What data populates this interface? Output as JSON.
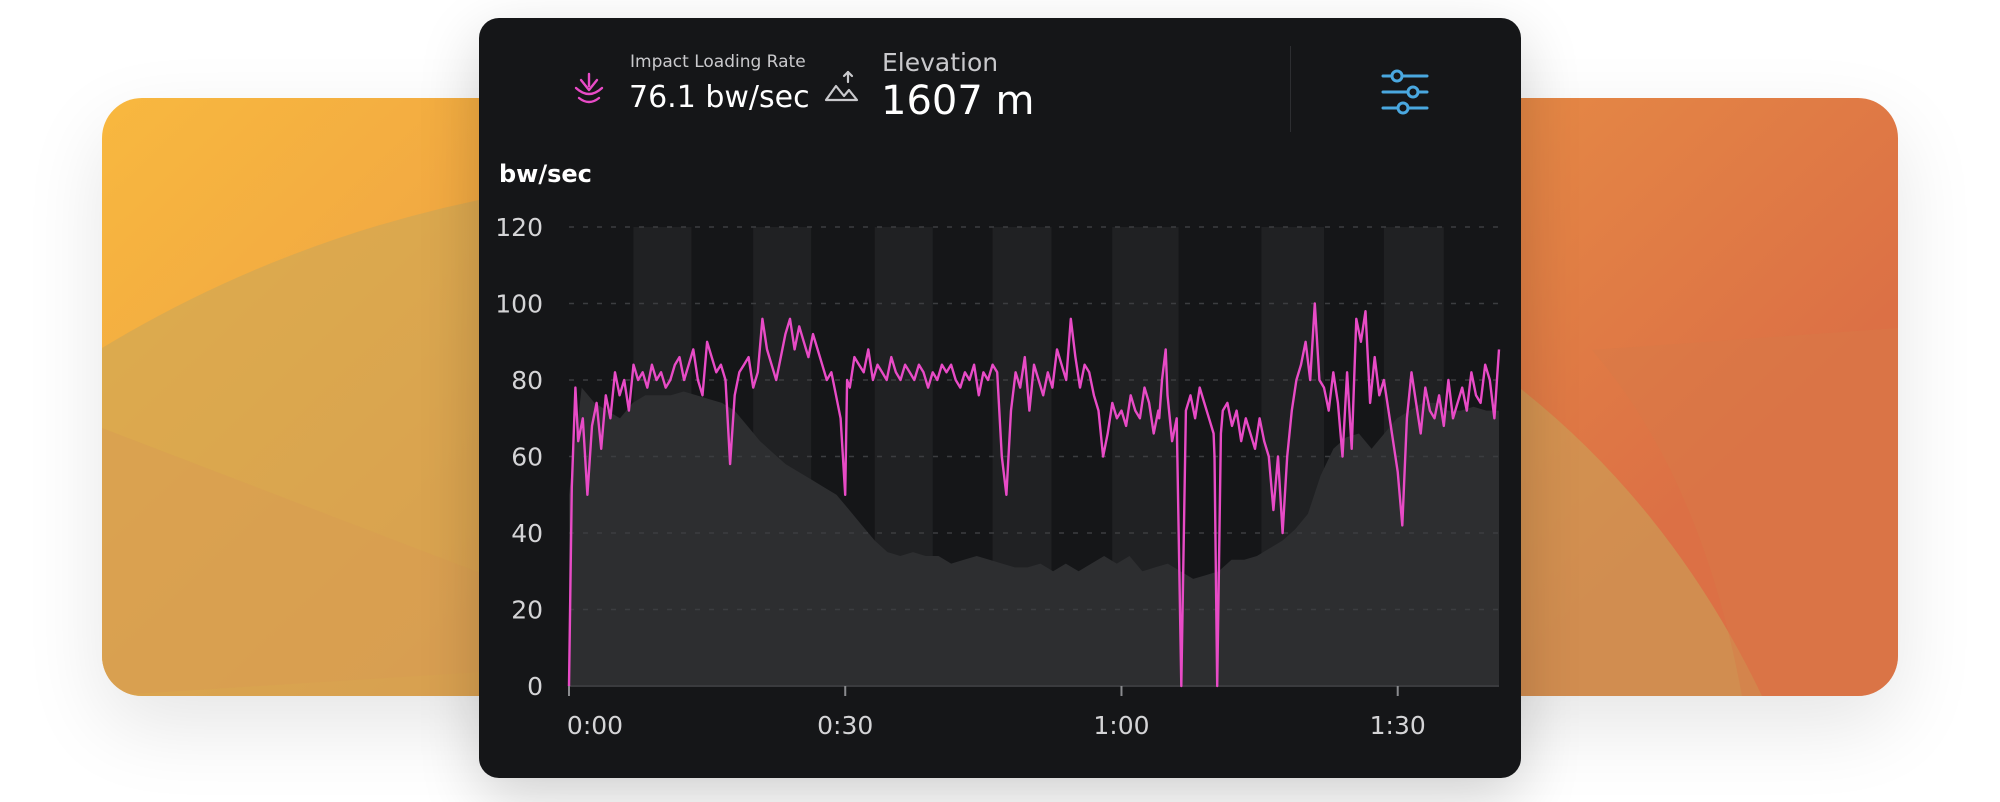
{
  "header": {
    "impact": {
      "icon": "impact-loading-icon",
      "label": "Impact Loading Rate",
      "value": "76.1 bw/sec"
    },
    "elevation": {
      "icon": "elevation-icon",
      "label": "Elevation",
      "value": "1607 m"
    },
    "settings_icon": "settings-sliders-icon"
  },
  "colors": {
    "series": "#e84bc6",
    "elevation_fill": "#2e2f31",
    "panel_bg": "#151618",
    "accent_settings": "#4aa8e0",
    "bg_warm_1": "#f8b73f",
    "bg_warm_2": "#de7440"
  },
  "chart_data": {
    "type": "line",
    "ylabel": "bw/sec",
    "ylim": [
      0,
      120
    ],
    "yticks": [
      "0",
      "20",
      "40",
      "60",
      "80",
      "100",
      "120"
    ],
    "xlim_minutes": [
      0,
      101
    ],
    "xticks": [
      {
        "t": 0,
        "label": "0:00"
      },
      {
        "t": 30,
        "label": "0:30"
      },
      {
        "t": 60,
        "label": "1:00"
      },
      {
        "t": 90,
        "label": "1:30"
      }
    ],
    "grid": "dashed-horizontal",
    "highlight_bands_minutes": [
      [
        7,
        13.3
      ],
      [
        20,
        26.3
      ],
      [
        33.2,
        39.5
      ],
      [
        46,
        52.4
      ],
      [
        59,
        66.2
      ],
      [
        75.2,
        82
      ],
      [
        88.5,
        95
      ]
    ],
    "series": [
      {
        "values_t_minutes": [
          0,
          0.3,
          0.7,
          1,
          1.5,
          2,
          2.5,
          3,
          3.5,
          4,
          4.5,
          5,
          5.5,
          6,
          6.5,
          7,
          7.5,
          8,
          8.5,
          9,
          9.5,
          10,
          10.5,
          11,
          11.5,
          12,
          12.5,
          13,
          13.5,
          14,
          14.5,
          15,
          15.5,
          16,
          16.5,
          17,
          17.5,
          18,
          18.5,
          19,
          19.5,
          20,
          20.5,
          21,
          21.5,
          22,
          22.5,
          23,
          23.5,
          24,
          24.5,
          25,
          25.5,
          26,
          26.5,
          27,
          27.5,
          28,
          28.5,
          29,
          29.5,
          30,
          30.2,
          30.5,
          31,
          31.5,
          32,
          32.5,
          33,
          33.5,
          34,
          34.5,
          35,
          35.5,
          36,
          36.5,
          37,
          37.5,
          38,
          38.5,
          39,
          39.5,
          40,
          40.5,
          41,
          41.5,
          42,
          42.5,
          43,
          43.5,
          44,
          44.5,
          45,
          45.5,
          46,
          46.5,
          47,
          47.5,
          48,
          48.5,
          49,
          49.5,
          50,
          50.5,
          51,
          51.5,
          52,
          52.5,
          53,
          53.5,
          54,
          54.5,
          55,
          55.5,
          56,
          56.5,
          57,
          57.5,
          58,
          58.5,
          59,
          59.5,
          60,
          60.5,
          61,
          61.5,
          62,
          62.5,
          63,
          63.5,
          64,
          64.1,
          64.4,
          64.8,
          65,
          65.5,
          66,
          66.5,
          67,
          67.5,
          68,
          68.5,
          69,
          69.5,
          70,
          70.1,
          70.4,
          70.8,
          71,
          71.5,
          72,
          72.5,
          73,
          73.5,
          74,
          74.5,
          75,
          75.5,
          76,
          76.5,
          77,
          77.5,
          78,
          78.5,
          79,
          79.5,
          80,
          80.5,
          81,
          81.5,
          82,
          82.5,
          83,
          83.5,
          84,
          84.5,
          85,
          85.5,
          86,
          86.5,
          87,
          87.5,
          88,
          88.5,
          89,
          89.5,
          90,
          90.5,
          91,
          91.5,
          92,
          92.5,
          93,
          93.5,
          94,
          94.5,
          95,
          95.5,
          96,
          96.5,
          97,
          97.5,
          98,
          98.5,
          99,
          99.5,
          100,
          100.5,
          101
        ],
        "values": [
          0,
          52,
          78,
          64,
          70,
          50,
          68,
          74,
          62,
          76,
          70,
          82,
          76,
          80,
          72,
          84,
          80,
          82,
          78,
          84,
          80,
          82,
          78,
          80,
          84,
          86,
          80,
          84,
          88,
          80,
          76,
          90,
          86,
          82,
          84,
          80,
          58,
          76,
          82,
          84,
          86,
          78,
          82,
          96,
          88,
          84,
          80,
          86,
          92,
          96,
          88,
          94,
          90,
          86,
          92,
          88,
          84,
          80,
          82,
          76,
          70,
          50,
          80,
          78,
          86,
          84,
          82,
          88,
          80,
          84,
          82,
          80,
          86,
          82,
          80,
          84,
          82,
          80,
          84,
          82,
          78,
          82,
          80,
          84,
          82,
          84,
          80,
          78,
          82,
          80,
          84,
          76,
          82,
          80,
          84,
          82,
          60,
          50,
          72,
          82,
          78,
          86,
          72,
          84,
          80,
          76,
          82,
          78,
          88,
          84,
          80,
          96,
          86,
          78,
          84,
          82,
          76,
          72,
          60,
          66,
          74,
          70,
          72,
          68,
          76,
          72,
          70,
          78,
          74,
          66,
          72,
          70,
          80,
          88,
          76,
          64,
          70,
          0,
          72,
          76,
          70,
          78,
          74,
          70,
          66,
          60,
          0,
          66,
          72,
          74,
          68,
          72,
          64,
          70,
          66,
          62,
          70,
          64,
          60,
          46,
          60,
          40,
          60,
          72,
          80,
          84,
          90,
          80,
          100,
          80,
          78,
          72,
          82,
          74,
          60,
          82,
          62,
          96,
          90,
          98,
          74,
          86,
          76,
          80,
          72,
          64,
          56,
          42,
          70,
          82,
          74,
          66,
          78,
          72,
          70,
          76,
          68,
          80,
          70,
          74,
          78,
          72,
          82,
          76,
          74,
          84,
          80,
          70,
          88,
          78,
          94
        ],
        "elevation_profile": [
          50,
          78,
          74,
          72,
          70,
          74,
          76,
          76,
          76,
          77,
          76,
          75,
          74,
          72,
          68,
          64,
          61,
          58,
          56,
          54,
          52,
          50,
          46,
          42,
          38,
          35,
          34,
          35,
          34,
          34,
          32,
          33,
          34,
          33,
          32,
          31,
          31,
          32,
          30,
          32,
          30,
          32,
          34,
          32,
          34,
          30,
          31,
          32,
          30,
          28,
          29,
          30,
          33,
          33,
          34,
          36,
          38,
          41,
          45,
          55,
          62,
          65,
          66,
          62,
          66,
          70,
          72,
          74,
          74,
          72,
          72,
          73,
          72,
          72
        ]
      }
    ]
  }
}
